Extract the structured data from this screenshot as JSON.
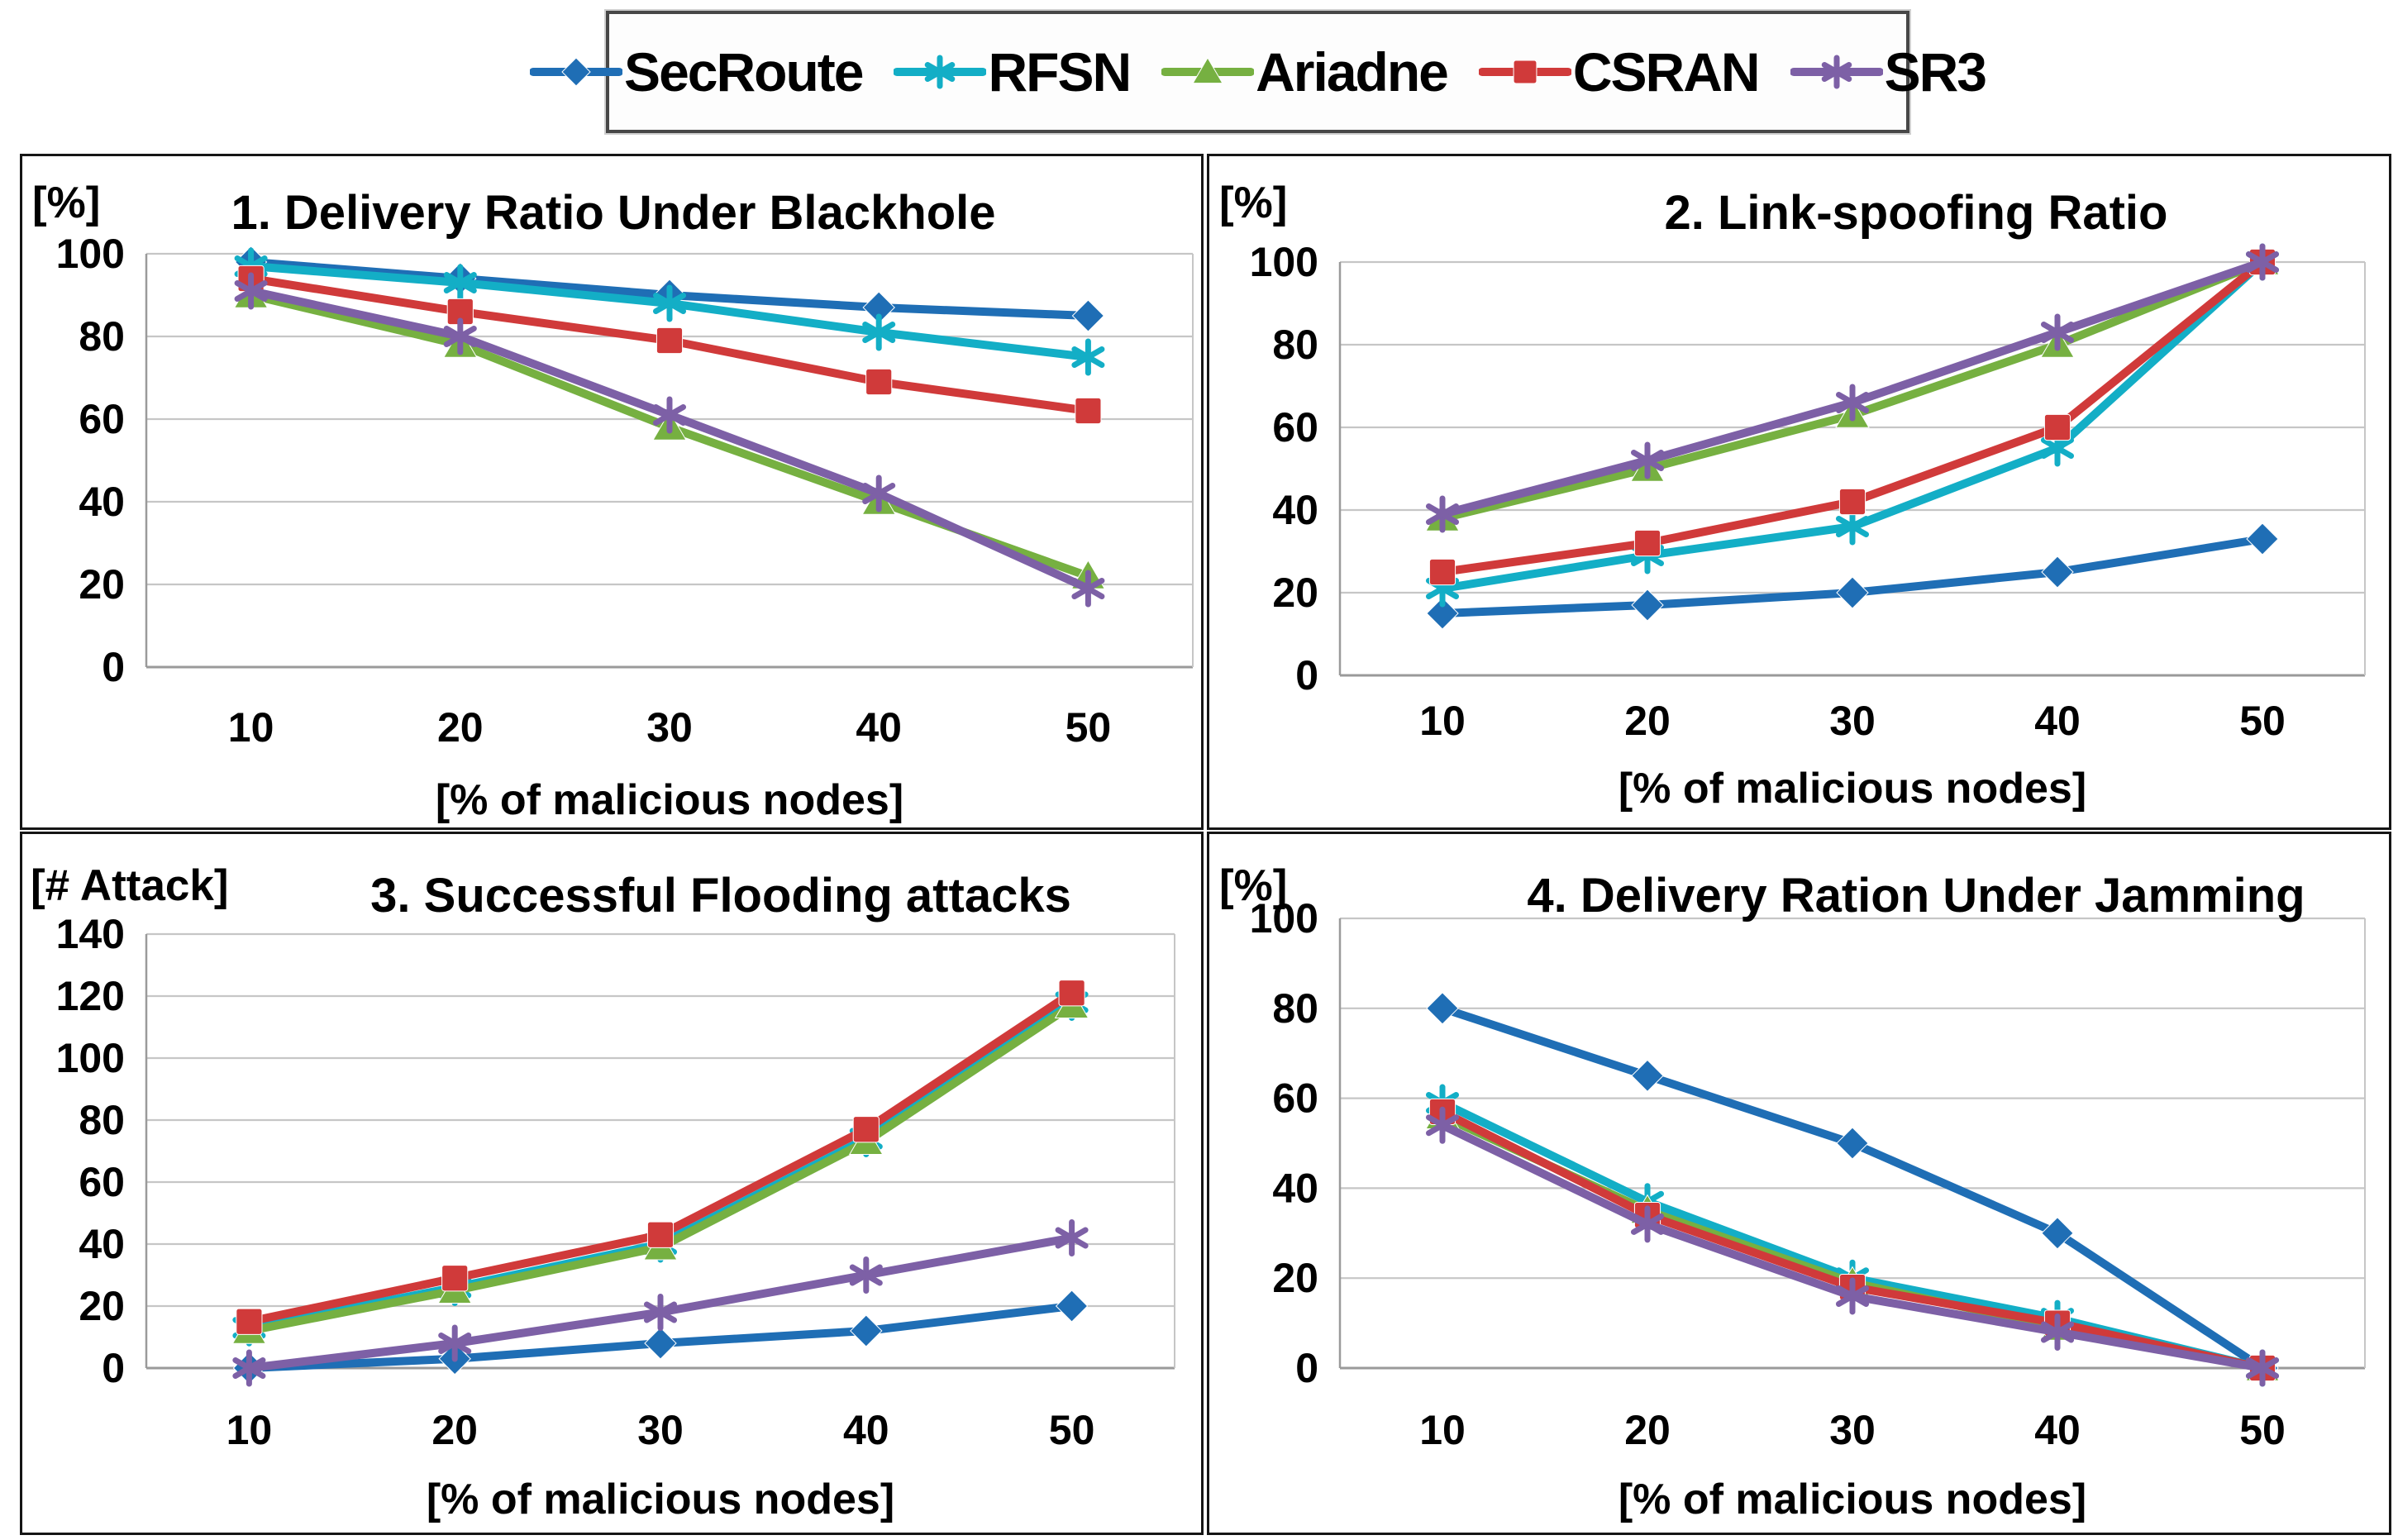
{
  "figure": {
    "x_axis_label": "[% of malicious nodes]",
    "categories": [
      "10",
      "20",
      "30",
      "40",
      "50"
    ]
  },
  "legend": {
    "items": [
      {
        "label": "SecRoute",
        "color": "#1F6EB5",
        "marker": "diamond"
      },
      {
        "label": "RFSN",
        "color": "#13AEC6",
        "marker": "asterisk"
      },
      {
        "label": "Ariadne",
        "color": "#76B041",
        "marker": "triangle"
      },
      {
        "label": "CSRAN",
        "color": "#D03A3A",
        "marker": "square"
      },
      {
        "label": "SR3",
        "color": "#7D60A6",
        "marker": "asterisk"
      }
    ]
  },
  "colors": {
    "gridline": "#c6c6c6",
    "axis": "#9a9a9a",
    "panel_border": "#151515",
    "text": "#000000"
  },
  "chart_data": [
    {
      "type": "line",
      "title": "1. Delivery Ratio Under Blackhole",
      "unit_label": "[%]",
      "xlabel": "[% of malicious nodes]",
      "categories": [
        "10",
        "20",
        "30",
        "40",
        "50"
      ],
      "ylim": [
        0,
        100
      ],
      "ytick_step": 20,
      "grid": true,
      "series": [
        {
          "name": "SecRoute",
          "values": [
            98,
            94,
            90,
            87,
            85
          ]
        },
        {
          "name": "RFSN",
          "values": [
            97,
            93,
            88,
            81,
            75
          ]
        },
        {
          "name": "Ariadne",
          "values": [
            90,
            78,
            58,
            40,
            22
          ]
        },
        {
          "name": "CSRAN",
          "values": [
            94,
            86,
            79,
            69,
            62
          ]
        },
        {
          "name": "SR3",
          "values": [
            91,
            80,
            61,
            42,
            19
          ]
        }
      ]
    },
    {
      "type": "line",
      "title": "2. Link-spoofing Ratio",
      "unit_label": "[%]",
      "xlabel": "[% of malicious nodes]",
      "categories": [
        "10",
        "20",
        "30",
        "40",
        "50"
      ],
      "ylim": [
        0,
        100
      ],
      "ytick_step": 20,
      "grid": true,
      "series": [
        {
          "name": "SecRoute",
          "values": [
            15,
            17,
            20,
            25,
            33
          ]
        },
        {
          "name": "RFSN",
          "values": [
            21,
            29,
            36,
            55,
            100
          ]
        },
        {
          "name": "Ariadne",
          "values": [
            38,
            50,
            63,
            80,
            100
          ]
        },
        {
          "name": "CSRAN",
          "values": [
            25,
            32,
            42,
            60,
            100
          ]
        },
        {
          "name": "SR3",
          "values": [
            39,
            52,
            66,
            83,
            100
          ]
        }
      ]
    },
    {
      "type": "line",
      "title": "3. Successful Flooding attacks",
      "unit_label": "[# Attack]",
      "xlabel": "[% of malicious nodes]",
      "categories": [
        "10",
        "20",
        "30",
        "40",
        "50"
      ],
      "ylim": [
        0,
        140
      ],
      "ytick_step": 20,
      "grid": true,
      "series": [
        {
          "name": "SecRoute",
          "values": [
            0,
            3,
            8,
            12,
            20
          ]
        },
        {
          "name": "RFSN",
          "values": [
            13,
            26,
            40,
            74,
            118
          ]
        },
        {
          "name": "Ariadne",
          "values": [
            12,
            25,
            39,
            73,
            117
          ]
        },
        {
          "name": "CSRAN",
          "values": [
            15,
            29,
            43,
            77,
            121
          ]
        },
        {
          "name": "SR3",
          "values": [
            0,
            8,
            18,
            30,
            42
          ]
        }
      ]
    },
    {
      "type": "line",
      "title": "4. Delivery Ration Under Jamming",
      "unit_label": "[%]",
      "xlabel": "[% of malicious nodes]",
      "categories": [
        "10",
        "20",
        "30",
        "40",
        "50"
      ],
      "ylim": [
        0,
        100
      ],
      "ytick_step": 20,
      "grid": true,
      "series": [
        {
          "name": "SecRoute",
          "values": [
            80,
            65,
            50,
            30,
            0
          ]
        },
        {
          "name": "RFSN",
          "values": [
            59,
            37,
            20,
            11,
            0
          ]
        },
        {
          "name": "Ariadne",
          "values": [
            56,
            35,
            19,
            9,
            0
          ]
        },
        {
          "name": "CSRAN",
          "values": [
            57,
            34,
            18,
            10,
            0
          ]
        },
        {
          "name": "SR3",
          "values": [
            54,
            32,
            16,
            8,
            0
          ]
        }
      ]
    }
  ]
}
